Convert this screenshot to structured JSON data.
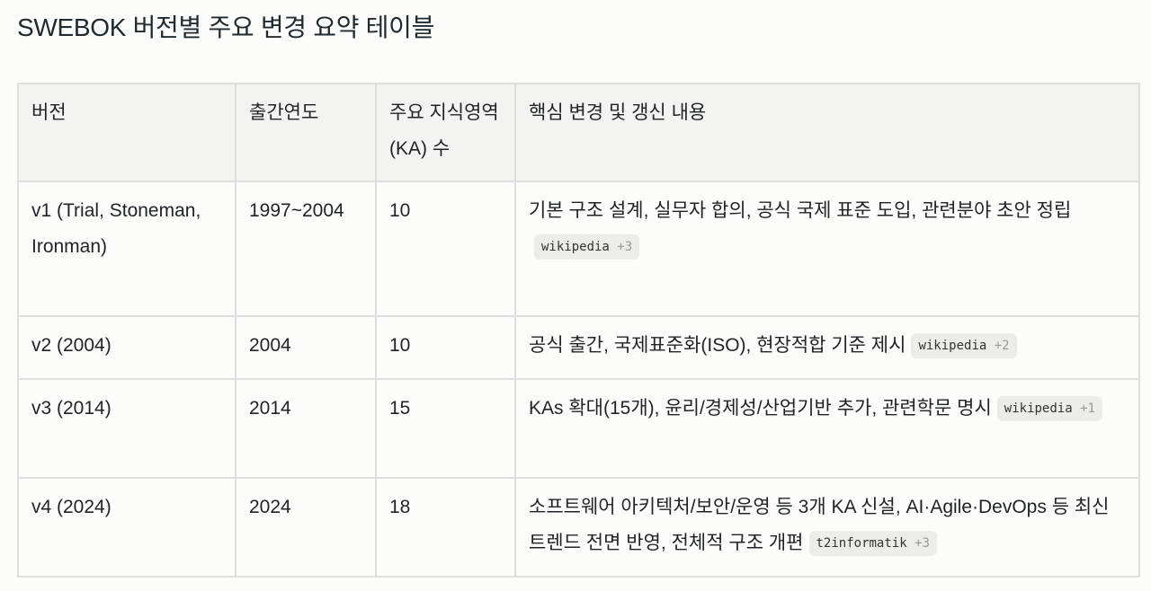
{
  "title": "SWEBOK 버전별 주요 변경 요약 테이블",
  "table": {
    "headers": [
      "버전",
      "출간연도",
      "주요 지식영역(KA) 수",
      "핵심 변경 및 갱신 내용"
    ],
    "rows": [
      {
        "version": "v1 (Trial, Stoneman, Ironman)",
        "year": "1997~2004",
        "ka": "10",
        "changes": "기본 구조 설계, 실무자 합의, 공식 국제 표준 도입, 관련분야 초안 정립",
        "source": "wikipedia",
        "more": "+3"
      },
      {
        "version": "v2 (2004)",
        "year": "2004",
        "ka": "10",
        "changes": "공식 출간, 국제표준화(ISO), 현장적합 기준 제시",
        "source": "wikipedia",
        "more": "+2"
      },
      {
        "version": "v3 (2014)",
        "year": "2014",
        "ka": "15",
        "changes": "KAs 확대(15개), 윤리/경제성/산업기반 추가, 관련학문 명시",
        "source": "wikipedia",
        "more": "+1"
      },
      {
        "version": "v4 (2024)",
        "year": "2024",
        "ka": "18",
        "changes": "소프트웨어 아키텍처/보안/운영 등 3개 KA 신설, AI·Agile·DevOps 등 최신 트렌드 전면 반영, 전체적 구조 개편",
        "source": "t2informatik",
        "more": "+3"
      }
    ]
  }
}
